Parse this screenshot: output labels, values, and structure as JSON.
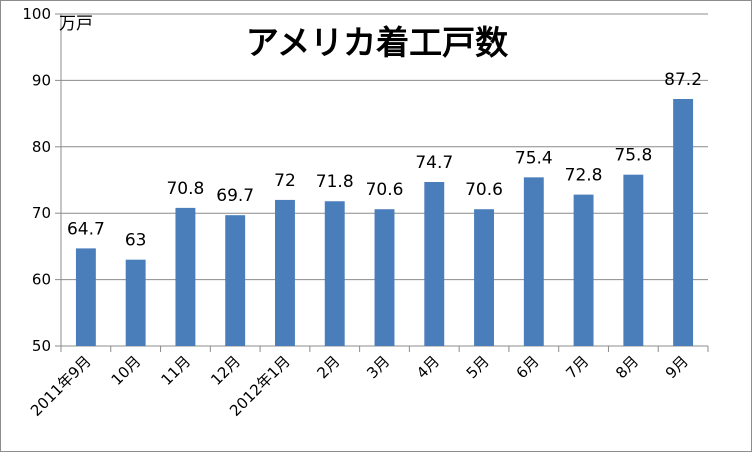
{
  "chart_data": {
    "type": "bar",
    "title": "アメリカ着工戸数",
    "unit_label": "万戸",
    "categories": [
      "2011年9月",
      "10月",
      "11月",
      "12月",
      "2012年1月",
      "2月",
      "3月",
      "4月",
      "5月",
      "6月",
      "7月",
      "8月",
      "9月"
    ],
    "values": [
      64.7,
      63,
      70.8,
      69.7,
      72,
      71.8,
      70.6,
      74.7,
      70.6,
      75.4,
      72.8,
      75.8,
      87.2
    ],
    "data_labels": [
      "64.7",
      "63",
      "70.8",
      "69.7",
      "72",
      "71.8",
      "70.6",
      "74.7",
      "70.6",
      "75.4",
      "72.8",
      "75.8",
      "87.2"
    ],
    "ylim": [
      50,
      100
    ],
    "yticks": [
      "50",
      "60",
      "70",
      "80",
      "90",
      "100"
    ],
    "grid": true,
    "legend": "none",
    "colors": {
      "bar": "#4a7ebb",
      "grid": "#8c8c8c",
      "axis": "#8c8c8c"
    }
  }
}
